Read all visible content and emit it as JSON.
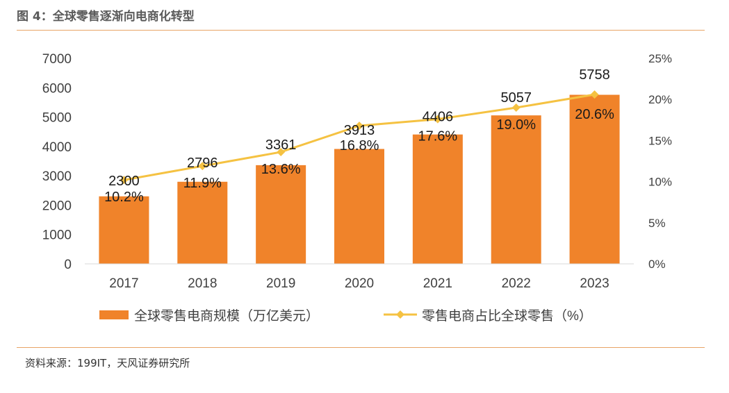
{
  "header": {
    "title": "图 4：全球零售逐渐向电商化转型"
  },
  "footer": {
    "source": "资料来源：199IT，天风证券研究所"
  },
  "colors": {
    "bar": "#f0832a",
    "line": "#f5c242",
    "rule": "#e8a466",
    "axis": "#d9d9d9",
    "text": "#404040"
  },
  "chart_data": {
    "type": "bar",
    "categories": [
      "2017",
      "2018",
      "2019",
      "2020",
      "2021",
      "2022",
      "2023"
    ],
    "series": [
      {
        "name": "全球零售电商规模（万亿美元）",
        "type": "bar",
        "axis": "left",
        "values": [
          2300,
          2796,
          3361,
          3913,
          4406,
          5057,
          5758
        ],
        "labels": [
          "2300",
          "2796",
          "3361",
          "3913",
          "4406",
          "5057",
          "5758"
        ]
      },
      {
        "name": "零售电商占比全球零售（%）",
        "type": "line",
        "axis": "right",
        "marker": "diamond",
        "values": [
          10.2,
          11.9,
          13.6,
          16.8,
          17.6,
          19.0,
          20.6
        ],
        "labels": [
          "10.2%",
          "11.9%",
          "13.6%",
          "16.8%",
          "17.6%",
          "19.0%",
          "20.6%"
        ]
      }
    ],
    "ylim_left": [
      0,
      7000
    ],
    "ylim_right": [
      0,
      25
    ],
    "yticks_left": [
      "0",
      "1000",
      "2000",
      "3000",
      "4000",
      "5000",
      "6000",
      "7000"
    ],
    "yticks_right": [
      "0%",
      "5%",
      "10%",
      "15%",
      "20%",
      "25%"
    ],
    "grid": false,
    "legend_position": "bottom"
  }
}
